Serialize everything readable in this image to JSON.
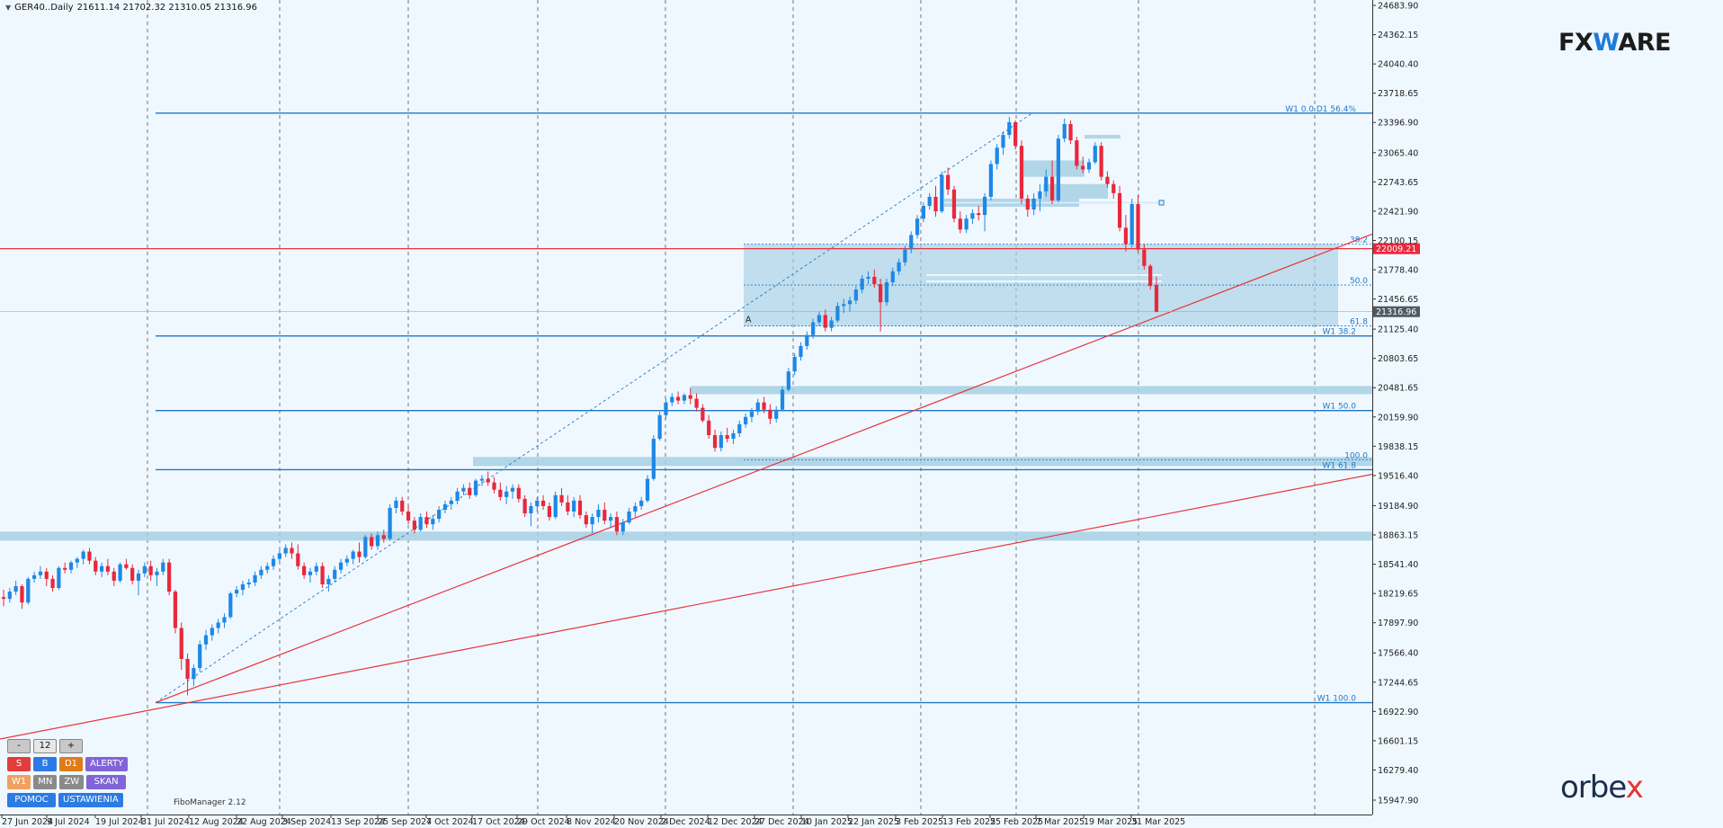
{
  "header": {
    "symbol": "GER40..Daily",
    "ohlc": "21611.14 21702.32 21310.05 21316.96"
  },
  "logos": {
    "fxware_pre": "FX",
    "fxware_w": "W",
    "fxware_post": "ARE",
    "orbex_pre": "orbe",
    "orbex_x": "x"
  },
  "filter_label": "FiboManager 2.12",
  "panel": {
    "minus": "-",
    "value": "12",
    "plus": "+",
    "sell": "S",
    "buy": "B",
    "tf_d1": "D1",
    "alerts": "ALERTY",
    "tf_w1": "W1",
    "tf_mn": "MN",
    "tf_zw": "ZW",
    "scan": "SKAN",
    "help": "POMOC",
    "settings": "USTAWIENIA"
  },
  "colors": {
    "background": "#f0f8ff",
    "bull": "#1e88e5",
    "bear": "#e8283c",
    "zone": "#a6d0e4",
    "fib_line": "#1e78c8",
    "trendline": "#e8343c",
    "price_tag": "#e8283c",
    "current_tag": "#505a64"
  },
  "chart_data": {
    "type": "candlestick",
    "symbol": "GER40",
    "timeframe": "Daily",
    "y_ticks": [
      "24683.90",
      "24362.15",
      "24040.40",
      "23718.65",
      "23396.90",
      "23065.40",
      "22743.65",
      "22421.90",
      "22100.15",
      "21778.40",
      "21456.65",
      "21125.40",
      "20803.65",
      "20481.65",
      "20159.90",
      "19838.15",
      "19516.40",
      "19184.90",
      "18863.15",
      "18541.40",
      "18219.65",
      "17897.90",
      "17566.40",
      "17244.65",
      "16922.90",
      "16601.15",
      "16279.40",
      "15947.90"
    ],
    "x_ticks": [
      "27 Jun 2024",
      "9 Jul 2024",
      "19 Jul 2024",
      "31 Jul 2024",
      "12 Aug 2024",
      "22 Aug 2024",
      "3 Sep 2024",
      "13 Sep 2024",
      "25 Sep 2024",
      "7 Oct 2024",
      "17 Oct 2024",
      "29 Oct 2024",
      "8 Nov 2024",
      "20 Nov 2024",
      "2 Dec 2024",
      "12 Dec 2024",
      "27 Dec 2024",
      "10 Jan 2025",
      "22 Jan 2025",
      "3 Feb 2025",
      "13 Feb 2025",
      "25 Feb 2025",
      "7 Mar 2025",
      "19 Mar 2025",
      "31 Mar 2025"
    ],
    "ylim": [
      15900,
      24750
    ],
    "price_tags": {
      "red": "22009.21",
      "current": "21316.96"
    },
    "fib_levels": [
      {
        "label": "W1 0.0   D1 56.4%",
        "price": 23500
      },
      {
        "label": "W1 38.2",
        "price": 21050
      },
      {
        "label": "W1 50.0",
        "price": 20230
      },
      {
        "label": "W1 61.8",
        "price": 19580
      },
      {
        "label": "W1 100.0",
        "price": 17020
      }
    ],
    "box_levels": [
      {
        "label": "38.2",
        "price": 22060
      },
      {
        "label": "50.0",
        "price": 21610
      },
      {
        "label": "61.8",
        "price": 21160
      },
      {
        "label": "100.0",
        "price": 19690
      }
    ],
    "box_marker": "A",
    "candles": [
      [
        18180,
        18260,
        18080,
        18160
      ],
      [
        18160,
        18280,
        18120,
        18240
      ],
      [
        18240,
        18360,
        18200,
        18300
      ],
      [
        18300,
        18320,
        18050,
        18120
      ],
      [
        18120,
        18400,
        18100,
        18380
      ],
      [
        18380,
        18460,
        18340,
        18420
      ],
      [
        18420,
        18520,
        18380,
        18460
      ],
      [
        18460,
        18500,
        18300,
        18380
      ],
      [
        18380,
        18420,
        18240,
        18280
      ],
      [
        18280,
        18520,
        18260,
        18500
      ],
      [
        18500,
        18560,
        18440,
        18480
      ],
      [
        18480,
        18580,
        18440,
        18560
      ],
      [
        18560,
        18620,
        18500,
        18600
      ],
      [
        18600,
        18700,
        18540,
        18680
      ],
      [
        18680,
        18720,
        18540,
        18580
      ],
      [
        18580,
        18620,
        18420,
        18460
      ],
      [
        18460,
        18560,
        18400,
        18520
      ],
      [
        18520,
        18600,
        18420,
        18460
      ],
      [
        18460,
        18500,
        18300,
        18360
      ],
      [
        18360,
        18560,
        18340,
        18540
      ],
      [
        18540,
        18600,
        18480,
        18500
      ],
      [
        18500,
        18540,
        18320,
        18360
      ],
      [
        18360,
        18480,
        18200,
        18440
      ],
      [
        18440,
        18560,
        18400,
        18520
      ],
      [
        18520,
        18580,
        18360,
        18420
      ],
      [
        18420,
        18500,
        18300,
        18460
      ],
      [
        18460,
        18600,
        18420,
        18560
      ],
      [
        18560,
        18600,
        18200,
        18240
      ],
      [
        18240,
        18260,
        17780,
        17840
      ],
      [
        17840,
        17900,
        17380,
        17500
      ],
      [
        17500,
        17560,
        17100,
        17280
      ],
      [
        17280,
        17440,
        17200,
        17400
      ],
      [
        17400,
        17700,
        17360,
        17660
      ],
      [
        17660,
        17820,
        17600,
        17760
      ],
      [
        17760,
        17880,
        17700,
        17840
      ],
      [
        17840,
        17940,
        17780,
        17900
      ],
      [
        17900,
        18000,
        17840,
        17960
      ],
      [
        17960,
        18240,
        17940,
        18220
      ],
      [
        18220,
        18300,
        18180,
        18260
      ],
      [
        18260,
        18360,
        18200,
        18320
      ],
      [
        18320,
        18380,
        18280,
        18340
      ],
      [
        18340,
        18460,
        18300,
        18420
      ],
      [
        18420,
        18520,
        18380,
        18480
      ],
      [
        18480,
        18560,
        18440,
        18520
      ],
      [
        18520,
        18640,
        18480,
        18600
      ],
      [
        18600,
        18700,
        18560,
        18660
      ],
      [
        18660,
        18760,
        18620,
        18720
      ],
      [
        18720,
        18780,
        18600,
        18660
      ],
      [
        18660,
        18760,
        18480,
        18520
      ],
      [
        18520,
        18560,
        18380,
        18420
      ],
      [
        18420,
        18500,
        18340,
        18460
      ],
      [
        18460,
        18560,
        18420,
        18520
      ],
      [
        18520,
        18560,
        18280,
        18320
      ],
      [
        18320,
        18420,
        18240,
        18380
      ],
      [
        18380,
        18520,
        18340,
        18480
      ],
      [
        18480,
        18600,
        18440,
        18560
      ],
      [
        18560,
        18640,
        18520,
        18600
      ],
      [
        18600,
        18700,
        18540,
        18680
      ],
      [
        18680,
        18780,
        18560,
        18620
      ],
      [
        18620,
        18860,
        18600,
        18840
      ],
      [
        18840,
        18880,
        18700,
        18740
      ],
      [
        18740,
        18900,
        18700,
        18860
      ],
      [
        18860,
        18920,
        18780,
        18820
      ],
      [
        18820,
        19200,
        18800,
        19160
      ],
      [
        19160,
        19280,
        19100,
        19240
      ],
      [
        19240,
        19280,
        19080,
        19120
      ],
      [
        19120,
        19180,
        18980,
        19020
      ],
      [
        19020,
        19060,
        18880,
        18920
      ],
      [
        18920,
        19100,
        18900,
        19060
      ],
      [
        19060,
        19120,
        18940,
        18980
      ],
      [
        18980,
        19080,
        18920,
        19040
      ],
      [
        19040,
        19180,
        19000,
        19140
      ],
      [
        19140,
        19240,
        19100,
        19200
      ],
      [
        19200,
        19280,
        19140,
        19240
      ],
      [
        19240,
        19380,
        19200,
        19340
      ],
      [
        19340,
        19420,
        19300,
        19380
      ],
      [
        19380,
        19440,
        19260,
        19300
      ],
      [
        19300,
        19480,
        19280,
        19460
      ],
      [
        19460,
        19520,
        19400,
        19480
      ],
      [
        19480,
        19560,
        19400,
        19440
      ],
      [
        19440,
        19500,
        19320,
        19360
      ],
      [
        19360,
        19440,
        19240,
        19280
      ],
      [
        19280,
        19400,
        19200,
        19340
      ],
      [
        19340,
        19420,
        19260,
        19380
      ],
      [
        19380,
        19420,
        19220,
        19260
      ],
      [
        19260,
        19300,
        19060,
        19100
      ],
      [
        19100,
        19220,
        18960,
        19180
      ],
      [
        19180,
        19280,
        19120,
        19240
      ],
      [
        19240,
        19300,
        19140,
        19180
      ],
      [
        19180,
        19220,
        19020,
        19060
      ],
      [
        19060,
        19340,
        19040,
        19300
      ],
      [
        19300,
        19380,
        19180,
        19220
      ],
      [
        19220,
        19300,
        19080,
        19120
      ],
      [
        19120,
        19280,
        19060,
        19240
      ],
      [
        19240,
        19300,
        19040,
        19080
      ],
      [
        19080,
        19120,
        18940,
        18980
      ],
      [
        18980,
        19100,
        18880,
        19060
      ],
      [
        19060,
        19200,
        19000,
        19140
      ],
      [
        19140,
        19220,
        18980,
        19020
      ],
      [
        19020,
        19100,
        18940,
        19060
      ],
      [
        19060,
        19120,
        18860,
        18900
      ],
      [
        18900,
        19040,
        18860,
        19000
      ],
      [
        19000,
        19160,
        18980,
        19120
      ],
      [
        19120,
        19220,
        19060,
        19180
      ],
      [
        19180,
        19280,
        19140,
        19240
      ],
      [
        19240,
        19520,
        19220,
        19480
      ],
      [
        19480,
        19960,
        19460,
        19920
      ],
      [
        19920,
        20220,
        19900,
        20180
      ],
      [
        20180,
        20360,
        20140,
        20320
      ],
      [
        20320,
        20420,
        20280,
        20380
      ],
      [
        20380,
        20440,
        20300,
        20340
      ],
      [
        20340,
        20420,
        20300,
        20400
      ],
      [
        20400,
        20480,
        20300,
        20360
      ],
      [
        20360,
        20420,
        20220,
        20260
      ],
      [
        20260,
        20300,
        20100,
        20120
      ],
      [
        20120,
        20180,
        19920,
        19960
      ],
      [
        19960,
        20020,
        19780,
        19820
      ],
      [
        19820,
        20000,
        19780,
        19960
      ],
      [
        19960,
        20040,
        19880,
        19920
      ],
      [
        19920,
        20020,
        19860,
        19980
      ],
      [
        19980,
        20120,
        19940,
        20080
      ],
      [
        20080,
        20200,
        20040,
        20160
      ],
      [
        20160,
        20260,
        20100,
        20220
      ],
      [
        20220,
        20360,
        20180,
        20320
      ],
      [
        20320,
        20380,
        20200,
        20240
      ],
      [
        20240,
        20300,
        20080,
        20140
      ],
      [
        20140,
        20280,
        20100,
        20240
      ],
      [
        20240,
        20500,
        20220,
        20460
      ],
      [
        20460,
        20700,
        20440,
        20660
      ],
      [
        20660,
        20860,
        20620,
        20820
      ],
      [
        20820,
        20980,
        20780,
        20940
      ],
      [
        20940,
        21100,
        20900,
        21060
      ],
      [
        21060,
        21240,
        21020,
        21200
      ],
      [
        21200,
        21320,
        21160,
        21280
      ],
      [
        21280,
        21340,
        21100,
        21140
      ],
      [
        21140,
        21260,
        21100,
        21220
      ],
      [
        21220,
        21420,
        21200,
        21380
      ],
      [
        21380,
        21460,
        21300,
        21400
      ],
      [
        21400,
        21480,
        21320,
        21440
      ],
      [
        21440,
        21600,
        21400,
        21560
      ],
      [
        21560,
        21720,
        21520,
        21680
      ],
      [
        21680,
        21760,
        21620,
        21700
      ],
      [
        21700,
        21780,
        21580,
        21620
      ],
      [
        21620,
        21680,
        21100,
        21420
      ],
      [
        21420,
        21680,
        21380,
        21640
      ],
      [
        21640,
        21800,
        21600,
        21760
      ],
      [
        21760,
        21900,
        21720,
        21860
      ],
      [
        21860,
        22040,
        21820,
        22000
      ],
      [
        22000,
        22200,
        21960,
        22160
      ],
      [
        22160,
        22380,
        22120,
        22340
      ],
      [
        22340,
        22520,
        22300,
        22480
      ],
      [
        22480,
        22620,
        22440,
        22580
      ],
      [
        22580,
        22700,
        22360,
        22420
      ],
      [
        22420,
        22860,
        22400,
        22820
      ],
      [
        22820,
        22900,
        22600,
        22660
      ],
      [
        22660,
        22700,
        22300,
        22340
      ],
      [
        22340,
        22420,
        22180,
        22220
      ],
      [
        22220,
        22380,
        22180,
        22340
      ],
      [
        22340,
        22440,
        22280,
        22400
      ],
      [
        22400,
        22480,
        22320,
        22380
      ],
      [
        22380,
        22620,
        22200,
        22580
      ],
      [
        22580,
        22980,
        22540,
        22940
      ],
      [
        22940,
        23160,
        22880,
        23120
      ],
      [
        23120,
        23300,
        23040,
        23260
      ],
      [
        23260,
        23460,
        23220,
        23400
      ],
      [
        23400,
        23420,
        23100,
        23140
      ],
      [
        23140,
        23200,
        22500,
        22560
      ],
      [
        22560,
        22600,
        22360,
        22440
      ],
      [
        22440,
        22620,
        22380,
        22560
      ],
      [
        22560,
        22720,
        22420,
        22640
      ],
      [
        22640,
        22880,
        22580,
        22800
      ],
      [
        22800,
        22980,
        22500,
        22540
      ],
      [
        22540,
        23260,
        22520,
        23220
      ],
      [
        23220,
        23440,
        23180,
        23380
      ],
      [
        23380,
        23420,
        23160,
        23200
      ],
      [
        23200,
        23240,
        22880,
        22920
      ],
      [
        22920,
        23020,
        22840,
        22880
      ],
      [
        22880,
        23000,
        22840,
        22960
      ],
      [
        22960,
        23180,
        22940,
        23140
      ],
      [
        23140,
        23180,
        22760,
        22800
      ],
      [
        22800,
        22860,
        22680,
        22720
      ],
      [
        22720,
        22760,
        22560,
        22620
      ],
      [
        22620,
        22700,
        22200,
        22240
      ],
      [
        22240,
        22380,
        21980,
        22060
      ],
      [
        22060,
        22560,
        22020,
        22500
      ],
      [
        22500,
        22600,
        21960,
        22000
      ],
      [
        22000,
        22060,
        21780,
        21820
      ],
      [
        21820,
        21840,
        21560,
        21600
      ],
      [
        21611.14,
        21702.32,
        21310.05,
        21316.96
      ]
    ]
  }
}
